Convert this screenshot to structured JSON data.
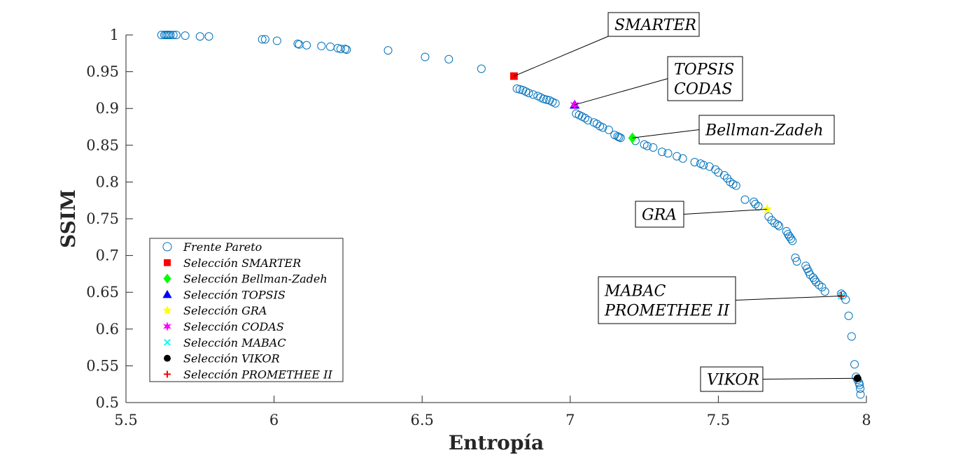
{
  "chart_data": {
    "type": "scatter",
    "title": "",
    "xlabel": "Entropía",
    "ylabel": "SSIM",
    "xlim": [
      5.5,
      8
    ],
    "ylim": [
      0.5,
      1
    ],
    "xticks": [
      "5.5",
      "6",
      "6.5",
      "7",
      "7.5",
      "8"
    ],
    "yticks": [
      "0.5",
      "0.55",
      "0.6",
      "0.65",
      "0.7",
      "0.75",
      "0.8",
      "0.85",
      "0.9",
      "0.95",
      "1"
    ],
    "grid": false,
    "legend_position": "bottom-left",
    "series": [
      {
        "name": "Frente Pareto",
        "marker": "circle-open",
        "color": "#0072BD",
        "x": [
          5.62,
          5.63,
          5.635,
          5.64,
          5.645,
          5.65,
          5.66,
          5.67,
          5.7,
          5.75,
          5.78,
          5.96,
          5.97,
          6.01,
          6.08,
          6.085,
          6.11,
          6.16,
          6.19,
          6.215,
          6.225,
          6.24,
          6.245,
          6.385,
          6.51,
          6.59,
          6.7,
          6.82,
          6.83,
          6.84,
          6.85,
          6.86,
          6.875,
          6.89,
          6.9,
          6.91,
          6.92,
          6.93,
          6.94,
          6.95,
          7.02,
          7.03,
          7.04,
          7.05,
          7.06,
          7.08,
          7.09,
          7.1,
          7.11,
          7.13,
          7.15,
          7.16,
          7.165,
          7.17,
          7.22,
          7.25,
          7.26,
          7.28,
          7.31,
          7.33,
          7.36,
          7.38,
          7.42,
          7.44,
          7.45,
          7.47,
          7.49,
          7.5,
          7.52,
          7.53,
          7.54,
          7.55,
          7.56,
          7.59,
          7.62,
          7.625,
          7.635,
          7.67,
          7.68,
          7.69,
          7.7,
          7.705,
          7.73,
          7.735,
          7.74,
          7.745,
          7.75,
          7.76,
          7.765,
          7.795,
          7.8,
          7.805,
          7.81,
          7.82,
          7.825,
          7.83,
          7.84,
          7.85,
          7.86,
          7.915,
          7.92,
          7.93,
          7.94,
          7.95,
          7.96,
          7.965,
          7.97,
          7.975,
          7.977,
          7.979,
          7.98
        ],
        "y": [
          1.0,
          1.0,
          1.0,
          1.0,
          1.0,
          1.0,
          1.0,
          1.0,
          0.999,
          0.998,
          0.998,
          0.994,
          0.994,
          0.992,
          0.988,
          0.987,
          0.986,
          0.985,
          0.984,
          0.982,
          0.981,
          0.981,
          0.98,
          0.979,
          0.97,
          0.967,
          0.954,
          0.927,
          0.926,
          0.925,
          0.923,
          0.921,
          0.919,
          0.917,
          0.915,
          0.913,
          0.912,
          0.911,
          0.909,
          0.907,
          0.893,
          0.891,
          0.889,
          0.887,
          0.884,
          0.881,
          0.879,
          0.876,
          0.874,
          0.871,
          0.864,
          0.862,
          0.861,
          0.86,
          0.856,
          0.851,
          0.849,
          0.847,
          0.841,
          0.839,
          0.835,
          0.832,
          0.827,
          0.825,
          0.823,
          0.821,
          0.817,
          0.813,
          0.809,
          0.805,
          0.8,
          0.797,
          0.795,
          0.776,
          0.773,
          0.77,
          0.767,
          0.753,
          0.748,
          0.744,
          0.742,
          0.74,
          0.733,
          0.729,
          0.726,
          0.723,
          0.72,
          0.697,
          0.692,
          0.686,
          0.682,
          0.678,
          0.674,
          0.67,
          0.667,
          0.664,
          0.66,
          0.657,
          0.651,
          0.648,
          0.646,
          0.64,
          0.618,
          0.59,
          0.552,
          0.535,
          0.531,
          0.527,
          0.524,
          0.519,
          0.511
        ]
      },
      {
        "name": "Selección SMARTER",
        "marker": "square",
        "color": "#FF0000",
        "x": [
          6.81
        ],
        "y": [
          0.944
        ]
      },
      {
        "name": "Selección Bellman-Zadeh",
        "marker": "diamond",
        "color": "#00FF00",
        "x": [
          7.21
        ],
        "y": [
          0.86
        ]
      },
      {
        "name": "Selección TOPSIS",
        "marker": "triangle",
        "color": "#0000FF",
        "x": [
          7.015
        ],
        "y": [
          0.905
        ]
      },
      {
        "name": "Selección GRA",
        "marker": "star",
        "color": "#FFFF00",
        "x": [
          7.665
        ],
        "y": [
          0.763
        ]
      },
      {
        "name": "Selección CODAS",
        "marker": "hexagram",
        "color": "#FF00FF",
        "x": [
          7.015
        ],
        "y": [
          0.905
        ]
      },
      {
        "name": "Selección MABAC",
        "marker": "x",
        "color": "#00FFFF",
        "x": [
          7.915
        ],
        "y": [
          0.645
        ]
      },
      {
        "name": "Selección VIKOR",
        "marker": "filled-circle",
        "color": "#000000",
        "x": [
          7.97
        ],
        "y": [
          0.533
        ]
      },
      {
        "name": "Selección PROMETHEE II",
        "marker": "plus",
        "color": "#FF0000",
        "x": [
          7.915
        ],
        "y": [
          0.645
        ]
      }
    ],
    "annotations": [
      {
        "lines": [
          "SMARTER"
        ],
        "point": [
          6.81,
          0.944
        ]
      },
      {
        "lines": [
          "TOPSIS",
          "CODAS"
        ],
        "point": [
          7.015,
          0.905
        ]
      },
      {
        "lines": [
          "Bellman-Zadeh"
        ],
        "point": [
          7.21,
          0.86
        ]
      },
      {
        "lines": [
          "GRA"
        ],
        "point": [
          7.665,
          0.763
        ]
      },
      {
        "lines": [
          "MABAC",
          "PROMETHEE II"
        ],
        "point": [
          7.915,
          0.645
        ]
      },
      {
        "lines": [
          "VIKOR"
        ],
        "point": [
          7.97,
          0.533
        ]
      }
    ]
  }
}
